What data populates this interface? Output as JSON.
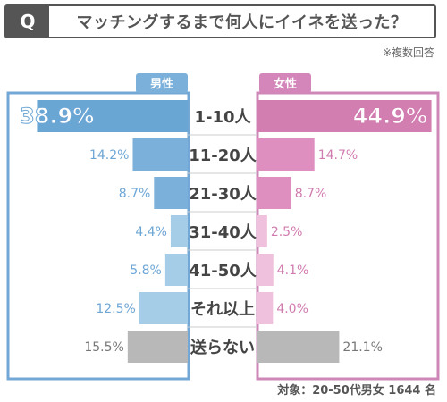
{
  "header": {
    "q_label": "Q",
    "question": "マッチングするまで何人にイイネを送った？"
  },
  "note": "※複数回答",
  "footer": "対象：20-50代男女 1644 名",
  "chart_data": {
    "type": "bar",
    "orientation": "horizontal-butterfly",
    "categories": [
      "1-10人",
      "11-20人",
      "21-30人",
      "31-40人",
      "41-50人",
      "それ以上",
      "送らない"
    ],
    "series": [
      {
        "name": "男性",
        "values": [
          38.9,
          14.2,
          8.7,
          4.4,
          5.8,
          12.5,
          15.5
        ],
        "value_labels": [
          "38.9%",
          "14.2%",
          "8.7%",
          "4.4%",
          "5.8%",
          "12.5%",
          "15.5%"
        ],
        "colors": [
          "#6aa6d3",
          "#7ab0da",
          "#7ab0da",
          "#a6cde7",
          "#a6cde7",
          "#a6cde7",
          "#b8b8b8"
        ]
      },
      {
        "name": "女性",
        "values": [
          44.9,
          14.7,
          8.7,
          2.5,
          4.1,
          4.0,
          21.1
        ],
        "value_labels": [
          "44.9%",
          "14.7%",
          "8.7%",
          "2.5%",
          "4.1%",
          "4.0%",
          "21.1%"
        ],
        "colors": [
          "#d27eb1",
          "#de8fbf",
          "#de8fbf",
          "#f0c1dc",
          "#f0c1dc",
          "#f0c1dc",
          "#b8b8b8"
        ]
      }
    ],
    "colors": {
      "male_frame": "#73a8d6",
      "male_label_bg": "#7ab0da",
      "male_text": "#6ea7d6",
      "female_frame": "#cf87b7",
      "female_label_bg": "#d485b9",
      "female_text": "#d17cb0",
      "none_text": "#777777",
      "category_text": "#444444"
    }
  }
}
